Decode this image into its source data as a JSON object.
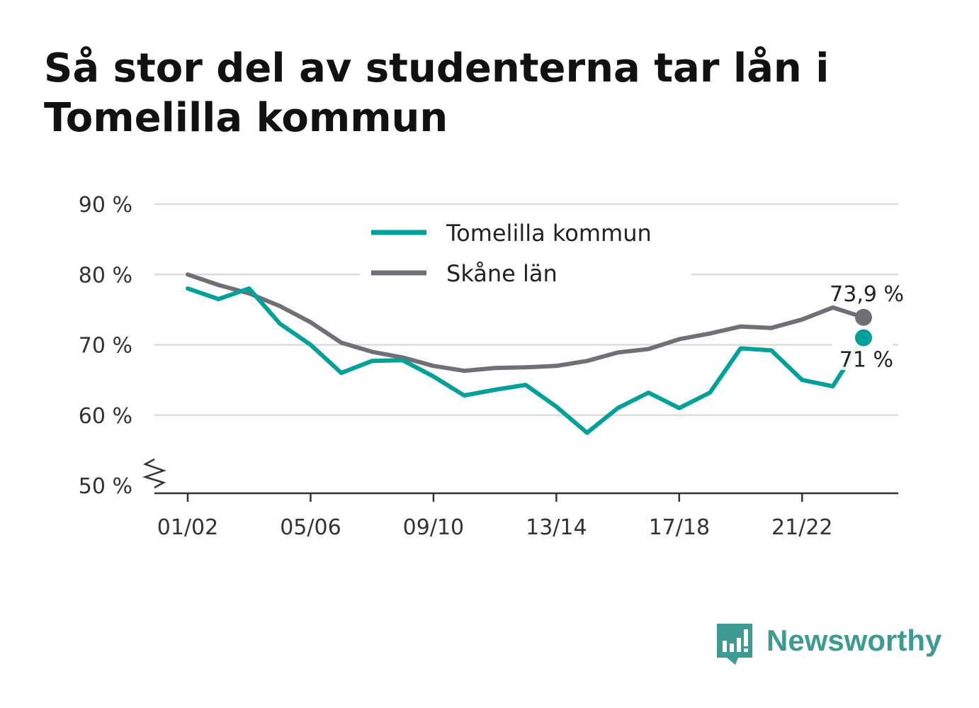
{
  "title": "Så stor del av studenterna tar lån i Tomelilla kommun",
  "brand": {
    "name": "Newsworthy",
    "icon": "newsworthy-logo-icon",
    "color": "#3d9b94"
  },
  "chart_data": {
    "type": "line",
    "x_ticks": [
      "01/02",
      "05/06",
      "09/10",
      "13/14",
      "17/18",
      "21/22"
    ],
    "ylim": [
      50,
      90
    ],
    "y_ticks": [
      50,
      60,
      70,
      80,
      90
    ],
    "y_tick_labels": [
      "50 %",
      "60 %",
      "70 %",
      "80 %",
      "90 %"
    ],
    "y_axis_break": true,
    "grid": true,
    "legend_position": "top-center",
    "x": [
      "01/02",
      "02/03",
      "03/04",
      "04/05",
      "05/06",
      "06/07",
      "07/08",
      "08/09",
      "09/10",
      "10/11",
      "11/12",
      "12/13",
      "13/14",
      "14/15",
      "15/16",
      "16/17",
      "17/18",
      "18/19",
      "19/20",
      "20/21",
      "21/22",
      "22/23",
      "23/24"
    ],
    "series": [
      {
        "name": "Tomelilla kommun",
        "color": "#00a19a",
        "values": [
          78.0,
          76.5,
          78.0,
          73.0,
          70.0,
          66.0,
          67.7,
          67.8,
          65.5,
          62.8,
          63.6,
          64.3,
          61.2,
          57.5,
          61.0,
          63.2,
          61.0,
          63.2,
          69.5,
          69.2,
          65.0,
          64.1,
          71.0
        ],
        "end_label": "71 %"
      },
      {
        "name": "Skåne län",
        "color": "#706f76",
        "values": [
          80.0,
          78.5,
          77.3,
          75.5,
          73.2,
          70.3,
          69.0,
          68.2,
          67.0,
          66.3,
          66.7,
          66.8,
          67.0,
          67.7,
          68.9,
          69.4,
          70.8,
          71.6,
          72.6,
          72.4,
          73.6,
          75.3,
          73.9
        ],
        "end_label": "73,9 %"
      }
    ]
  }
}
